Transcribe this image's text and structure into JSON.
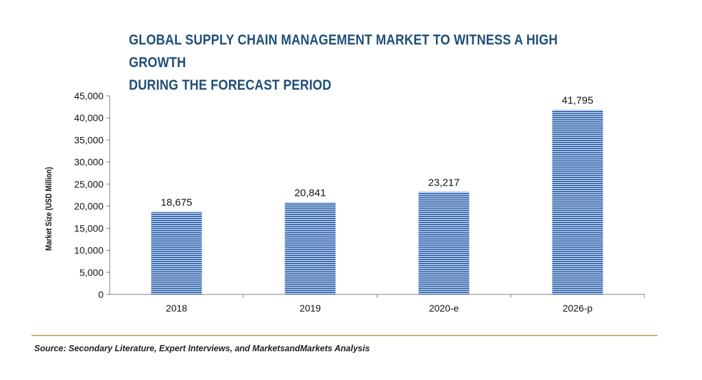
{
  "title_line1": "GLOBAL SUPPLY CHAIN MANAGEMENT MARKET TO WITNESS A HIGH GROWTH",
  "title_line2": "DURING THE FORECAST PERIOD",
  "source": "Source: Secondary Literature, Expert Interviews, and MarketsandMarkets Analysis",
  "colors": {
    "bar": "#3c6db3",
    "bar_stripe": "#ffffff",
    "title": "#1f4e79",
    "rule": "#c9b36a"
  },
  "chart_data": {
    "type": "bar",
    "categories": [
      "2018",
      "2019",
      "2020-e",
      "2026-p"
    ],
    "values": [
      18675,
      20841,
      23217,
      41795
    ],
    "data_labels": [
      "18,675",
      "20,841",
      "23,217",
      "41,795"
    ],
    "ylabel": "Market Size (USD Million)",
    "xlabel": "",
    "ylim": [
      0,
      45000
    ],
    "yticks": [
      0,
      5000,
      10000,
      15000,
      20000,
      25000,
      30000,
      35000,
      40000,
      45000
    ],
    "ytick_labels": [
      "0",
      "5,000",
      "10,000",
      "15,000",
      "20,000",
      "25,000",
      "30,000",
      "35,000",
      "40,000",
      "45,000"
    ],
    "grid": false,
    "legend": "none"
  }
}
